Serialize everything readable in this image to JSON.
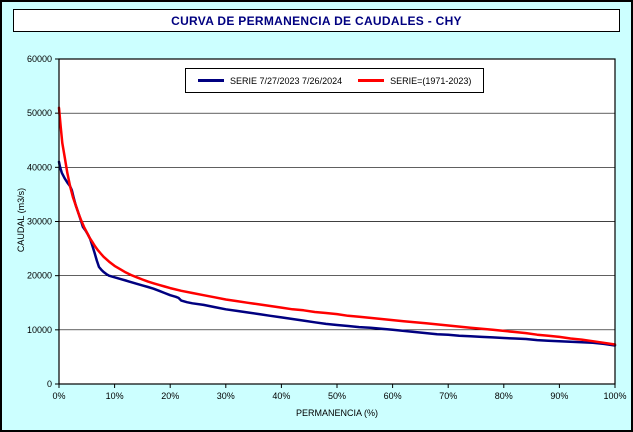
{
  "window": {
    "background": "#CCFFFF",
    "plot_background": "#FFFFFF"
  },
  "chart_data": {
    "type": "line",
    "title": "CURVA DE PERMANENCIA DE CAUDALES - CHY",
    "xlabel": "PERMANENCIA (%)",
    "ylabel": "CAUDAL (m3/s)",
    "xlim": [
      0,
      100
    ],
    "ylim": [
      0,
      60000
    ],
    "x_tick_step": 10,
    "y_tick_step": 10000,
    "x_tick_suffix": "%",
    "x_tick_labels": [
      "0%",
      "10%",
      "20%",
      "30%",
      "40%",
      "50%",
      "60%",
      "70%",
      "80%",
      "90%",
      "100%"
    ],
    "y_tick_labels": [
      "0",
      "10000",
      "20000",
      "30000",
      "40000",
      "50000",
      "60000"
    ],
    "grid": "horizontal",
    "legend_position": "top-center",
    "series": [
      {
        "name": "SERIE 7/27/2023 7/26/2024",
        "color": "#000080",
        "width": 2.5,
        "points": [
          [
            0,
            41000
          ],
          [
            0.2,
            40000
          ],
          [
            0.5,
            39000
          ],
          [
            1,
            38000
          ],
          [
            1.5,
            37200
          ],
          [
            2,
            36500
          ],
          [
            2.3,
            35800
          ],
          [
            2.6,
            34500
          ],
          [
            3,
            33000
          ],
          [
            3.5,
            31500
          ],
          [
            4,
            30000
          ],
          [
            4.3,
            29000
          ],
          [
            4.8,
            28300
          ],
          [
            5.2,
            27600
          ],
          [
            5.6,
            26800
          ],
          [
            6,
            25500
          ],
          [
            6.4,
            24200
          ],
          [
            6.8,
            22800
          ],
          [
            7.2,
            21600
          ],
          [
            7.6,
            21100
          ],
          [
            8,
            20700
          ],
          [
            8.5,
            20300
          ],
          [
            9,
            20000
          ],
          [
            10,
            19700
          ],
          [
            11,
            19400
          ],
          [
            12,
            19100
          ],
          [
            13,
            18800
          ],
          [
            14,
            18500
          ],
          [
            15,
            18200
          ],
          [
            16,
            17900
          ],
          [
            17,
            17600
          ],
          [
            18,
            17200
          ],
          [
            19,
            16800
          ],
          [
            20,
            16400
          ],
          [
            21,
            16100
          ],
          [
            21.5,
            15900
          ],
          [
            22,
            15400
          ],
          [
            23,
            15100
          ],
          [
            24,
            14900
          ],
          [
            26,
            14600
          ],
          [
            28,
            14200
          ],
          [
            30,
            13800
          ],
          [
            32,
            13500
          ],
          [
            34,
            13200
          ],
          [
            36,
            12900
          ],
          [
            38,
            12600
          ],
          [
            40,
            12300
          ],
          [
            42,
            12000
          ],
          [
            44,
            11700
          ],
          [
            46,
            11400
          ],
          [
            48,
            11100
          ],
          [
            50,
            10900
          ],
          [
            52,
            10700
          ],
          [
            54,
            10500
          ],
          [
            56,
            10400
          ],
          [
            58,
            10200
          ],
          [
            60,
            10000
          ],
          [
            62,
            9800
          ],
          [
            64,
            9600
          ],
          [
            66,
            9400
          ],
          [
            68,
            9200
          ],
          [
            70,
            9100
          ],
          [
            72,
            8900
          ],
          [
            74,
            8800
          ],
          [
            76,
            8700
          ],
          [
            78,
            8600
          ],
          [
            80,
            8500
          ],
          [
            82,
            8400
          ],
          [
            84,
            8300
          ],
          [
            86,
            8100
          ],
          [
            88,
            8000
          ],
          [
            90,
            7900
          ],
          [
            92,
            7800
          ],
          [
            94,
            7700
          ],
          [
            96,
            7600
          ],
          [
            98,
            7400
          ],
          [
            100,
            7100
          ]
        ]
      },
      {
        "name": "SERIE=(1971-2023)",
        "color": "#FF0000",
        "width": 2.5,
        "points": [
          [
            0,
            51000
          ],
          [
            0.3,
            47500
          ],
          [
            0.6,
            44500
          ],
          [
            1,
            42000
          ],
          [
            1.5,
            39000
          ],
          [
            2,
            36500
          ],
          [
            2.5,
            34500
          ],
          [
            3,
            33000
          ],
          [
            3.5,
            31500
          ],
          [
            4,
            30200
          ],
          [
            4.5,
            29000
          ],
          [
            5,
            28000
          ],
          [
            5.5,
            27000
          ],
          [
            6,
            26200
          ],
          [
            6.5,
            25400
          ],
          [
            7,
            24700
          ],
          [
            7.5,
            24100
          ],
          [
            8,
            23500
          ],
          [
            9,
            22600
          ],
          [
            10,
            21800
          ],
          [
            11,
            21200
          ],
          [
            12,
            20600
          ],
          [
            13,
            20100
          ],
          [
            14,
            19700
          ],
          [
            15,
            19300
          ],
          [
            16,
            18900
          ],
          [
            17,
            18600
          ],
          [
            18,
            18300
          ],
          [
            19,
            18000
          ],
          [
            20,
            17700
          ],
          [
            22,
            17200
          ],
          [
            24,
            16800
          ],
          [
            26,
            16400
          ],
          [
            28,
            16000
          ],
          [
            30,
            15600
          ],
          [
            32,
            15300
          ],
          [
            34,
            15000
          ],
          [
            36,
            14700
          ],
          [
            38,
            14400
          ],
          [
            40,
            14100
          ],
          [
            42,
            13800
          ],
          [
            44,
            13600
          ],
          [
            46,
            13300
          ],
          [
            48,
            13100
          ],
          [
            50,
            12900
          ],
          [
            52,
            12600
          ],
          [
            54,
            12400
          ],
          [
            56,
            12200
          ],
          [
            58,
            12000
          ],
          [
            60,
            11800
          ],
          [
            62,
            11600
          ],
          [
            64,
            11400
          ],
          [
            66,
            11200
          ],
          [
            68,
            11000
          ],
          [
            70,
            10800
          ],
          [
            72,
            10600
          ],
          [
            74,
            10400
          ],
          [
            76,
            10200
          ],
          [
            78,
            10000
          ],
          [
            80,
            9800
          ],
          [
            82,
            9600
          ],
          [
            84,
            9400
          ],
          [
            86,
            9100
          ],
          [
            88,
            8900
          ],
          [
            90,
            8700
          ],
          [
            92,
            8400
          ],
          [
            94,
            8200
          ],
          [
            96,
            7900
          ],
          [
            98,
            7600
          ],
          [
            100,
            7300
          ]
        ]
      }
    ]
  }
}
